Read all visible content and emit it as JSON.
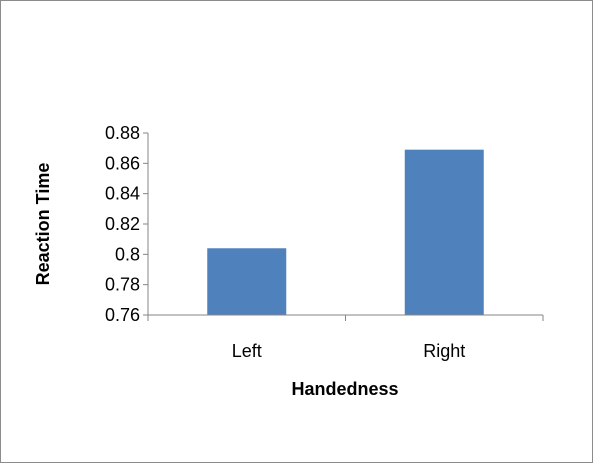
{
  "chart_data": {
    "type": "bar",
    "categories": [
      "Left",
      "Right"
    ],
    "values": [
      0.804,
      0.869
    ],
    "xlabel": "Handedness",
    "ylabel": "Reaction Time",
    "ylim": [
      0.76,
      0.88
    ],
    "yticks": [
      0.76,
      0.78,
      0.8,
      0.82,
      0.84,
      0.86,
      0.88
    ],
    "ytick_labels": [
      "0.76",
      "0.78",
      "0.8",
      "0.82",
      "0.84",
      "0.86",
      "0.88"
    ],
    "grid": false,
    "legend": "none",
    "bar_color": "#4f81bd"
  }
}
